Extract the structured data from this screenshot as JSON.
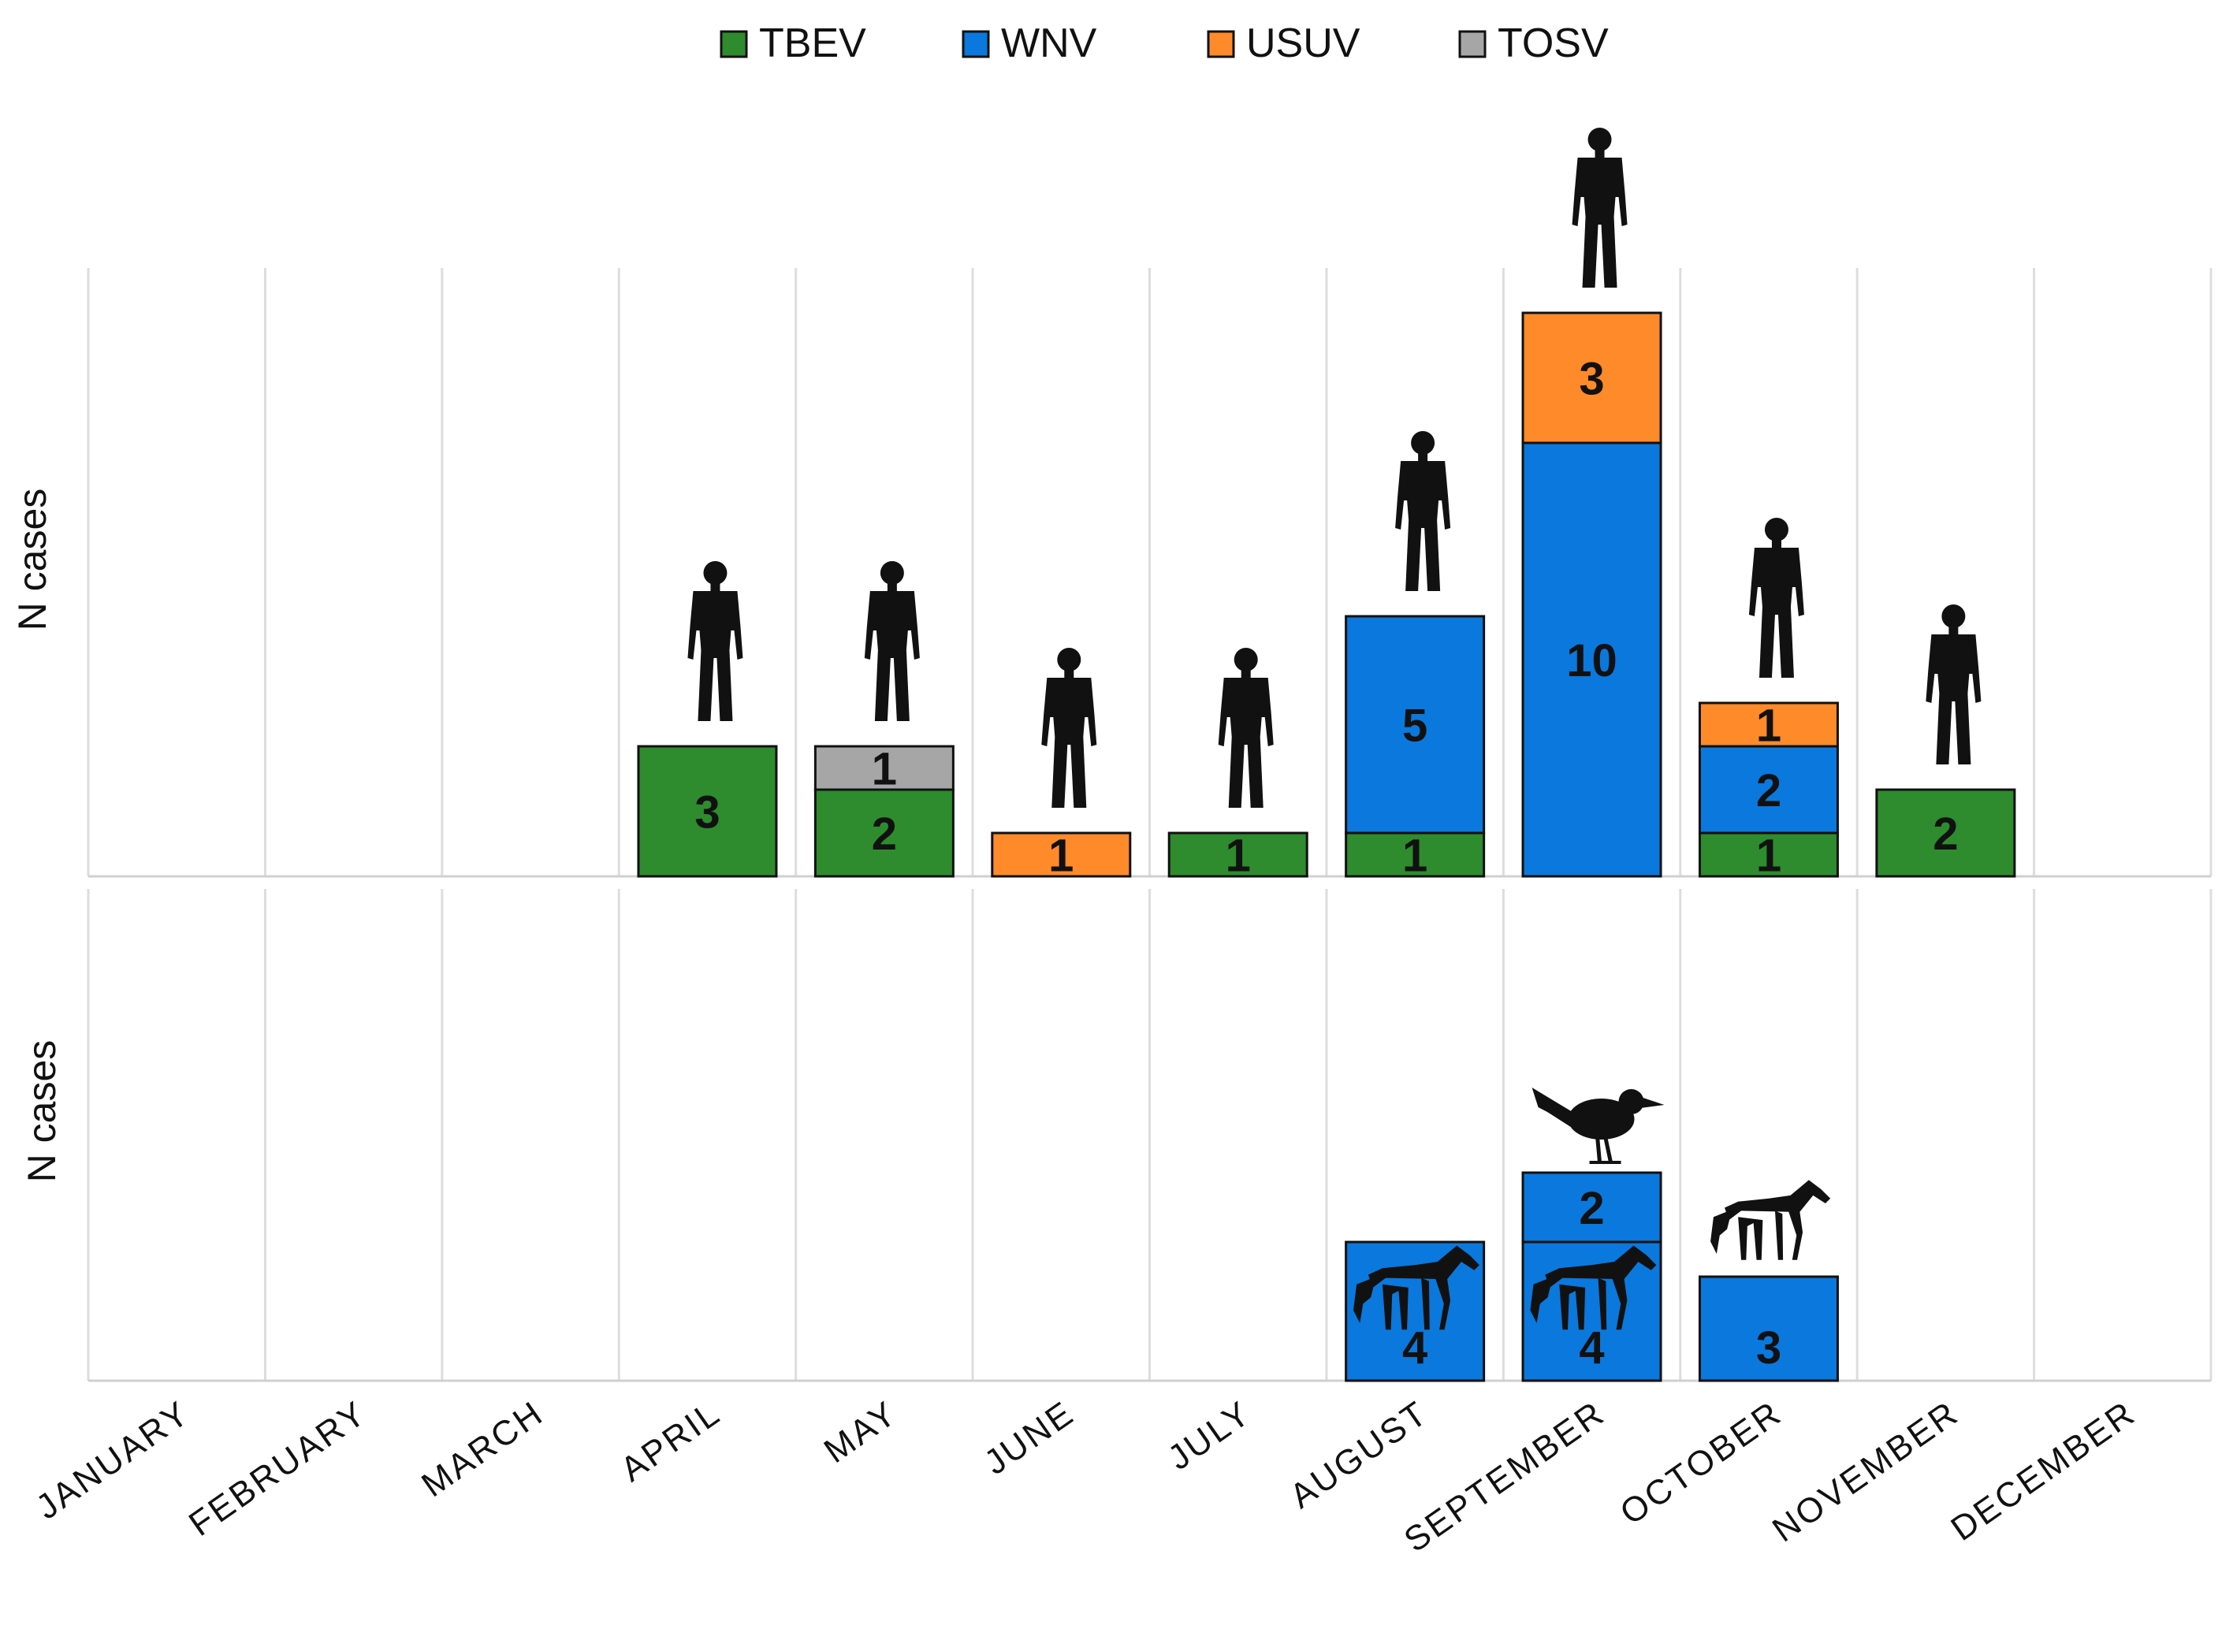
{
  "chart_data": {
    "type": "bar",
    "stacked": true,
    "legend": {
      "position": "top-center",
      "entries": [
        {
          "name": "TBEV",
          "color": "#2e8b2e"
        },
        {
          "name": "WNV",
          "color": "#0a78dc"
        },
        {
          "name": "USUV",
          "color": "#ff8a2a"
        },
        {
          "name": "TOSV",
          "color": "#a6a6a6"
        }
      ]
    },
    "categories": [
      "JANUARY",
      "FEBRUARY",
      "MARCH",
      "APRIL",
      "MAY",
      "JUNE",
      "JULY",
      "AUGUST",
      "SEPTEMBER",
      "OCTOBER",
      "NOVEMBER",
      "DECEMBER"
    ],
    "panels": [
      {
        "name": "humans",
        "ylabel": "N cases",
        "ylim": [
          0,
          13
        ],
        "icon": "human-icon",
        "series": [
          {
            "name": "TBEV",
            "values": [
              0,
              0,
              0,
              3,
              2,
              0,
              1,
              1,
              0,
              1,
              2,
              0
            ]
          },
          {
            "name": "WNV",
            "values": [
              0,
              0,
              0,
              0,
              0,
              0,
              0,
              5,
              10,
              2,
              0,
              0
            ]
          },
          {
            "name": "USUV",
            "values": [
              0,
              0,
              0,
              0,
              0,
              1,
              0,
              0,
              3,
              1,
              0,
              0
            ]
          },
          {
            "name": "TOSV",
            "values": [
              0,
              0,
              0,
              0,
              1,
              0,
              0,
              0,
              0,
              0,
              0,
              0
            ]
          }
        ]
      },
      {
        "name": "animals",
        "ylabel": "N cases",
        "ylim": [
          0,
          9
        ],
        "series": [
          {
            "name": "WNV horses",
            "color_series": "WNV",
            "icon": "horse-icon",
            "values": [
              0,
              0,
              0,
              0,
              0,
              0,
              0,
              4,
              4,
              3,
              0,
              0
            ]
          },
          {
            "name": "WNV birds",
            "color_series": "WNV",
            "icon": "bird-icon",
            "values": [
              0,
              0,
              0,
              0,
              0,
              0,
              0,
              0,
              2,
              0,
              0,
              0
            ]
          }
        ]
      }
    ]
  }
}
